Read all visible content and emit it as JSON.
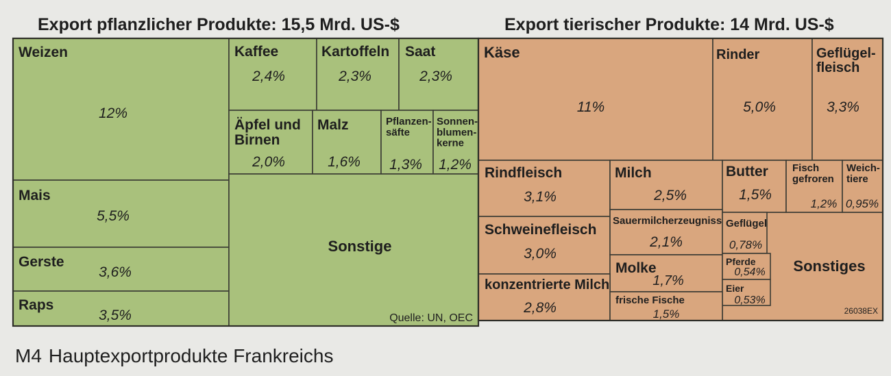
{
  "titles": {
    "plant": "Export pflanzlicher Produkte: 15,5 Mrd. US-$",
    "animal": "Export tierischer Produkte: 14 Mrd. US-$"
  },
  "caption": {
    "label": "M4",
    "text": "Hauptexportprodukte Frankreichs"
  },
  "chart_data": {
    "type": "treemap",
    "groups": [
      {
        "name": "Export pflanzlicher Produkte",
        "total": "15,5 Mrd. US-$",
        "color": "#a9c17c",
        "items": [
          {
            "label": "Weizen",
            "value": "12%"
          },
          {
            "label": "Mais",
            "value": "5,5%"
          },
          {
            "label": "Gerste",
            "value": "3,6%"
          },
          {
            "label": "Raps",
            "value": "3,5%"
          },
          {
            "label": "Kaffee",
            "value": "2,4%"
          },
          {
            "label": "Kartoffeln",
            "value": "2,3%"
          },
          {
            "label": "Saat",
            "value": "2,3%"
          },
          {
            "label": "Äpfel und\nBirnen",
            "value": "2,0%"
          },
          {
            "label": "Malz",
            "value": "1,6%"
          },
          {
            "label": "Pflanzen-\nsäfte",
            "value": "1,3%"
          },
          {
            "label": "Sonnen-\nblumen-\nkerne",
            "value": "1,2%"
          },
          {
            "label": "Sonstige",
            "value": ""
          }
        ]
      },
      {
        "name": "Export tierischer Produkte",
        "total": "14 Mrd. US-$",
        "color": "#d9a67e",
        "items": [
          {
            "label": "Käse",
            "value": "11%"
          },
          {
            "label": "Rinder",
            "value": "5,0%"
          },
          {
            "label": "Geflügel-\nfleisch",
            "value": "3,3%"
          },
          {
            "label": "Rindfleisch",
            "value": "3,1%"
          },
          {
            "label": "Milch",
            "value": "2,5%"
          },
          {
            "label": "Butter",
            "value": "1,5%"
          },
          {
            "label": "Fisch\ngefroren",
            "value": "1,2%"
          },
          {
            "label": "Weich-\ntiere",
            "value": "0,95%"
          },
          {
            "label": "Schweinefleisch",
            "value": "3,0%"
          },
          {
            "label": "Sauermilcherzeugnisse",
            "value": "2,1%"
          },
          {
            "label": "Geflügel",
            "value": "0,78%"
          },
          {
            "label": "Molke",
            "value": "1,7%"
          },
          {
            "label": "Pferde",
            "value": "0,54%"
          },
          {
            "label": "Eier",
            "value": "0,53%"
          },
          {
            "label": "konzentrierte Milch",
            "value": "2,8%"
          },
          {
            "label": "frische Fische",
            "value": "1,5%"
          },
          {
            "label": "Sonstiges",
            "value": ""
          }
        ]
      }
    ],
    "annotations": {
      "source": "Quelle: UN, OEC",
      "code": "26038EX"
    }
  }
}
